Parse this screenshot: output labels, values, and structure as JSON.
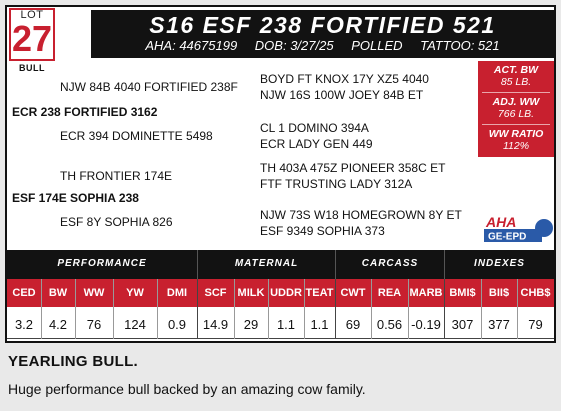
{
  "lot": {
    "label": "LOT",
    "number": "27",
    "sex": "BULL"
  },
  "header": {
    "name": "S16 ESF 238 FORTIFIED 521",
    "aha": "AHA: 44675199",
    "dob": "DOB: 3/27/25",
    "polled": "POLLED",
    "tattoo": "TATTOO: 521"
  },
  "pedigree": {
    "sire": "ECR 238 FORTIFIED 3162",
    "sire_sire": "NJW 84B 4040 FORTIFIED 238F",
    "sire_sire_sire": "BOYD FT KNOX 17Y XZ5 4040",
    "sire_sire_dam": "NJW 16S 100W JOEY 84B ET",
    "sire_dam": "ECR 394 DOMINETTE 5498",
    "sire_dam_sire": "CL 1 DOMINO 394A",
    "sire_dam_dam": "ECR LADY GEN 449",
    "dam": "ESF 174E SOPHIA 238",
    "dam_sire": "TH FRONTIER 174E",
    "dam_sire_sire": "TH 403A 475Z PIONEER 358C ET",
    "dam_sire_dam": "FTF TRUSTING LADY 312A",
    "dam_dam": "ESF 8Y SOPHIA 826",
    "dam_dam_sire": "NJW 73S W18 HOMEGROWN 8Y ET",
    "dam_dam_dam": "ESF 9349 SOPHIA 373"
  },
  "badge": {
    "act_bw_label": "ACT. BW",
    "act_bw_value": "85 LB.",
    "adj_ww_label": "ADJ. WW",
    "adj_ww_value": "766 LB.",
    "ww_ratio_label": "WW RATIO",
    "ww_ratio_value": "112%"
  },
  "logo": {
    "top": "AHA",
    "bottom": "GE-EPD"
  },
  "table": {
    "groups": [
      "PERFORMANCE",
      "MATERNAL",
      "CARCASS",
      "INDEXES"
    ],
    "columns": [
      "CED",
      "BW",
      "WW",
      "YW",
      "DMI",
      "SCF",
      "MILK",
      "UDDR",
      "TEAT",
      "CWT",
      "REA",
      "MARB",
      "BMI$",
      "BII$",
      "CHB$"
    ],
    "values": [
      "3.2",
      "4.2",
      "76",
      "124",
      "0.9",
      "14.9",
      "29",
      "1.1",
      "1.1",
      "69",
      "0.56",
      "-0.19",
      "307",
      "377",
      "79"
    ]
  },
  "description": {
    "title": "YEARLING BULL.",
    "body": "Huge performance bull backed by an amazing cow family."
  },
  "colors": {
    "accent": "#c8202f",
    "dark": "#121212",
    "logo_blue": "#2a5aa8"
  }
}
